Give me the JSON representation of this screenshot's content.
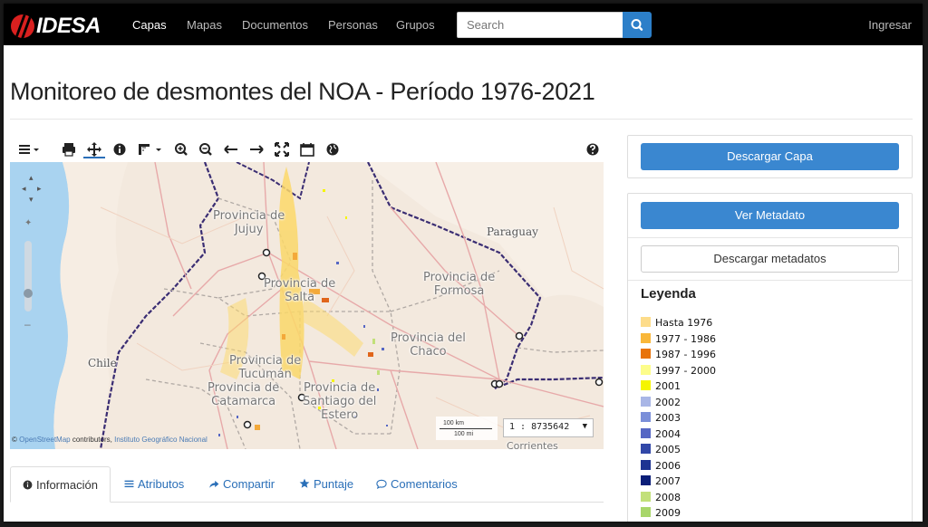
{
  "navbar": {
    "logo_text": "IDESA",
    "items": [
      "Capas",
      "Mapas",
      "Documentos",
      "Personas",
      "Grupos"
    ],
    "search_placeholder": "Search",
    "login": "Ingresar"
  },
  "page_title": "Monitoreo de desmontes del NOA - Período 1976-2021",
  "map": {
    "labels": {
      "jujuy": "Provincia de\nJujuy",
      "salta": "Provincia de\nSalta",
      "formosa": "Provincia de\nFormosa",
      "chaco": "Provincia del\nChaco",
      "tucuman": "Provincia de\nTucumán",
      "catamarca": "Provincia de\nCatamarca",
      "santiago": "Provincia de\nSantiago del\nEstero",
      "paraguay": "Paraguay",
      "chile": "Chile",
      "corrientes": "Corrientes"
    },
    "scale_km": "100 km",
    "scale_mi": "100 mi",
    "scale_value": "1 : 8735642",
    "attribution_copy": "©",
    "attribution_osm": "OpenStreetMap",
    "attribution_mid": " contributors, ",
    "attribution_ign": "Instituto Geográfico Nacional"
  },
  "tabs": [
    "Información",
    "Atributos",
    "Compartir",
    "Puntaje",
    "Comentarios"
  ],
  "sidebar": {
    "download_layer": "Descargar Capa",
    "view_metadata": "Ver Metadato",
    "download_metadata": "Descargar metadatos",
    "legend_title": "Leyenda",
    "legend": [
      {
        "label": "Hasta 1976",
        "color": "#fddc8a"
      },
      {
        "label": "1977 - 1986",
        "color": "#f9b73a"
      },
      {
        "label": "1987 - 1996",
        "color": "#e8730b"
      },
      {
        "label": "1997 - 2000",
        "color": "#fdfd8a"
      },
      {
        "label": "2001",
        "color": "#f5f500"
      },
      {
        "label": "2002",
        "color": "#a9b6e6"
      },
      {
        "label": "2003",
        "color": "#7b8fd9"
      },
      {
        "label": "2004",
        "color": "#5667c4"
      },
      {
        "label": "2005",
        "color": "#3248a8"
      },
      {
        "label": "2006",
        "color": "#1d3392"
      },
      {
        "label": "2007",
        "color": "#0b1e78"
      },
      {
        "label": "2008",
        "color": "#c2e07a"
      },
      {
        "label": "2009",
        "color": "#a8d66a"
      }
    ]
  }
}
